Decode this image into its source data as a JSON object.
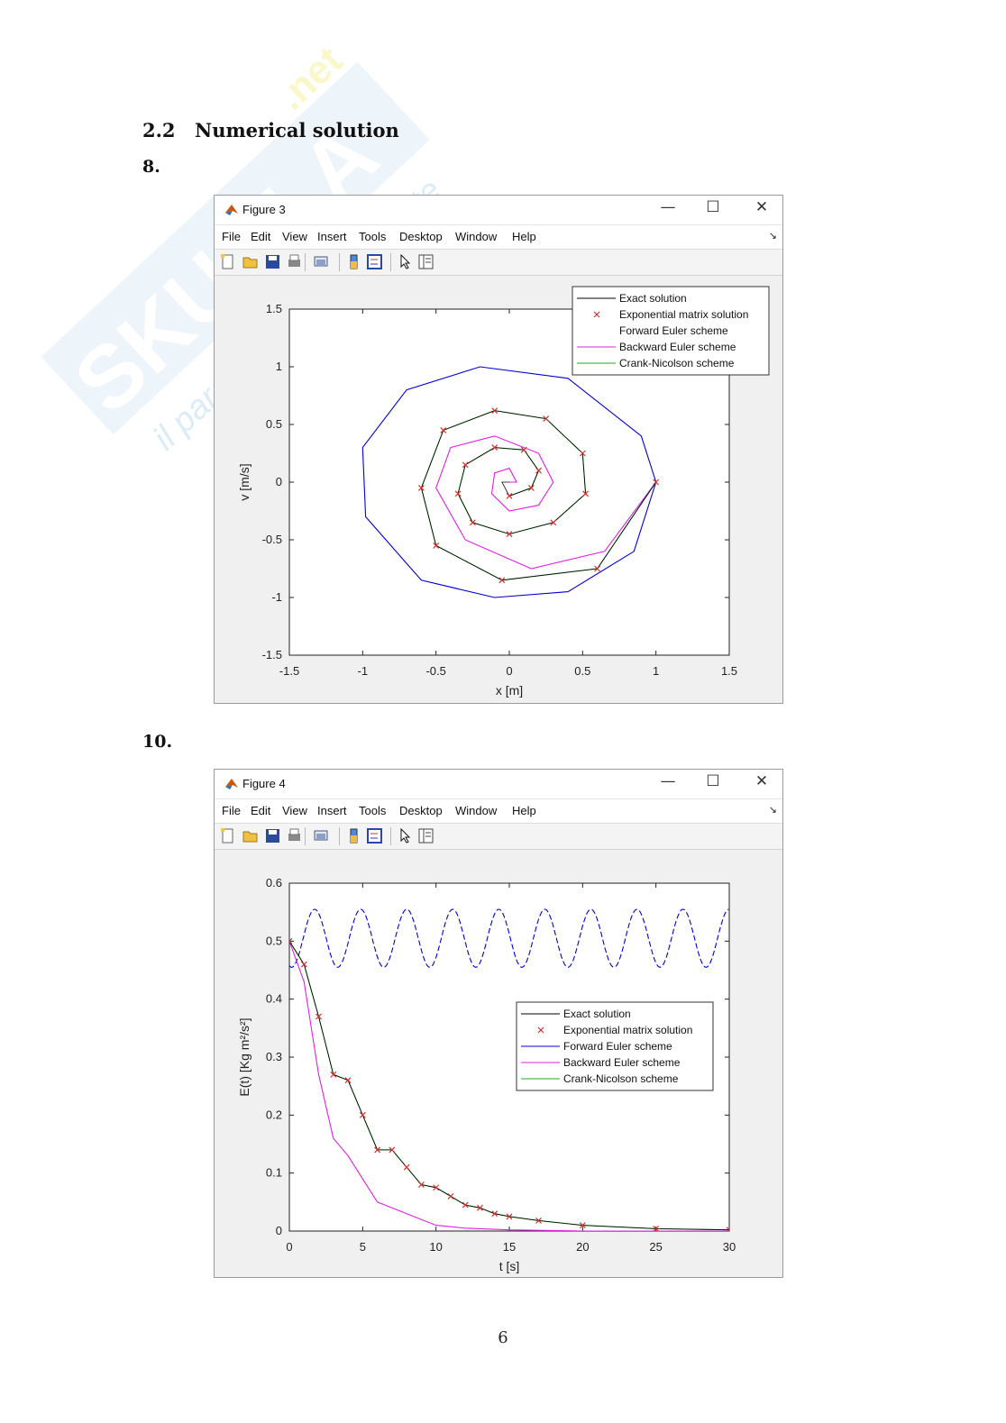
{
  "section": {
    "number": "2.2",
    "title": "Numerical solution"
  },
  "questions": {
    "q1": "8.",
    "q2": "10."
  },
  "page_number": "6",
  "watermark": {
    "brand": "Skuola.net",
    "tagline": "il paradiso dello studente"
  },
  "windows": [
    {
      "title": "Figure 3",
      "controls": {
        "minimize": "—",
        "maximize": "☐",
        "close": "✕"
      },
      "menu": [
        "File",
        "Edit",
        "View",
        "Insert",
        "Tools",
        "Desktop",
        "Window",
        "Help"
      ]
    },
    {
      "title": "Figure 4",
      "controls": {
        "minimize": "—",
        "maximize": "☐",
        "close": "✕"
      },
      "menu": [
        "File",
        "Edit",
        "View",
        "Insert",
        "Tools",
        "Desktop",
        "Window",
        "Help"
      ]
    }
  ],
  "toolbar_icons": [
    "new-file-icon",
    "open-folder-icon",
    "save-icon",
    "print-icon",
    "link-plot-icon",
    "colorbar-icon",
    "legend-icon",
    "pointer-icon",
    "property-inspector-icon"
  ],
  "colors": {
    "exact": "#000000",
    "exponential": "#d32f2f",
    "forward": "#0000cc",
    "backward": "#dd22dd",
    "crank": "#22aa22"
  },
  "chart_data": [
    {
      "type": "line",
      "xlabel": "x [m]",
      "ylabel": "v [m/s]",
      "xlim": [
        -1.5,
        1.5
      ],
      "ylim": [
        -1.5,
        1.5
      ],
      "xticks": [
        "-1.5",
        "-1",
        "-0.5",
        "0",
        "0.5",
        "1",
        "1.5"
      ],
      "yticks": [
        "-1.5",
        "-1",
        "-0.5",
        "0",
        "0.5",
        "1",
        "1.5"
      ],
      "legend_position": "top-right",
      "legend": [
        "Exact solution",
        "Exponential matrix solution",
        "Forward Euler scheme",
        "Backward Euler scheme",
        "Crank-Nicolson scheme"
      ],
      "series": [
        {
          "name": "Exact solution",
          "style": "line",
          "x": [
            1.0,
            0.6,
            -0.05,
            -0.5,
            -0.6,
            -0.45,
            -0.1,
            0.25,
            0.5,
            0.52,
            0.3,
            0.0,
            -0.25,
            -0.35,
            -0.3,
            -0.1,
            0.1,
            0.2,
            0.15,
            0.0,
            -0.05,
            0.0
          ],
          "y": [
            0.0,
            -0.75,
            -0.85,
            -0.55,
            -0.05,
            0.45,
            0.62,
            0.55,
            0.25,
            -0.1,
            -0.35,
            -0.45,
            -0.35,
            -0.1,
            0.15,
            0.3,
            0.28,
            0.1,
            -0.05,
            -0.12,
            0.0,
            0.0
          ]
        },
        {
          "name": "Exponential matrix solution",
          "style": "markers",
          "x": [
            1.0,
            0.6,
            -0.05,
            -0.5,
            -0.6,
            -0.45,
            -0.1,
            0.25,
            0.5,
            0.52,
            0.3,
            0.0,
            -0.25,
            -0.35,
            -0.3,
            -0.1,
            0.1,
            0.2,
            0.15,
            0.0
          ],
          "y": [
            0.0,
            -0.75,
            -0.85,
            -0.55,
            -0.05,
            0.45,
            0.62,
            0.55,
            0.25,
            -0.1,
            -0.35,
            -0.45,
            -0.35,
            -0.1,
            0.15,
            0.3,
            0.28,
            0.1,
            -0.05,
            -0.12
          ]
        },
        {
          "name": "Forward Euler scheme",
          "style": "line",
          "x": [
            1.0,
            0.85,
            0.4,
            -0.1,
            -0.6,
            -0.98,
            -1.0,
            -0.7,
            -0.2,
            0.4,
            0.9,
            1.0
          ],
          "y": [
            0.0,
            -0.6,
            -0.95,
            -1.0,
            -0.85,
            -0.3,
            0.3,
            0.8,
            1.0,
            0.9,
            0.4,
            0.0
          ]
        },
        {
          "name": "Backward Euler scheme",
          "style": "line",
          "x": [
            1.0,
            0.65,
            0.15,
            -0.3,
            -0.5,
            -0.4,
            -0.1,
            0.2,
            0.3,
            0.2,
            0.0,
            -0.12,
            -0.1,
            0.0,
            0.05,
            0.0
          ],
          "y": [
            0.0,
            -0.6,
            -0.75,
            -0.5,
            -0.05,
            0.3,
            0.4,
            0.25,
            0.0,
            -0.2,
            -0.25,
            -0.1,
            0.08,
            0.12,
            0.0,
            0.0
          ]
        },
        {
          "name": "Crank-Nicolson scheme",
          "style": "line",
          "x": [
            1.0,
            0.6,
            -0.05,
            -0.5,
            -0.6,
            -0.45,
            -0.1,
            0.25,
            0.5,
            0.52,
            0.3,
            0.0,
            -0.25,
            -0.35,
            -0.3,
            -0.1,
            0.1,
            0.2,
            0.15,
            0.0
          ],
          "y": [
            0.0,
            -0.75,
            -0.85,
            -0.55,
            -0.05,
            0.45,
            0.62,
            0.55,
            0.25,
            -0.1,
            -0.35,
            -0.45,
            -0.35,
            -0.1,
            0.15,
            0.3,
            0.28,
            0.1,
            -0.05,
            -0.12
          ]
        }
      ]
    },
    {
      "type": "line",
      "xlabel": "t [s]",
      "ylabel": "E(t) [Kg m²/s²]",
      "xlim": [
        0,
        30
      ],
      "ylim": [
        0,
        0.6
      ],
      "xticks": [
        "0",
        "5",
        "10",
        "15",
        "20",
        "25",
        "30"
      ],
      "yticks": [
        "0",
        "0.1",
        "0.2",
        "0.3",
        "0.4",
        "0.5",
        "0.6"
      ],
      "legend_position": "center-right",
      "legend": [
        "Exact solution",
        "Exponential matrix solution",
        "Forward Euler scheme",
        "Backward Euler scheme",
        "Crank-Nicolson scheme"
      ],
      "series": [
        {
          "name": "Exact solution",
          "style": "line",
          "x": [
            0,
            1,
            2,
            3,
            4,
            5,
            6,
            7,
            8,
            9,
            10,
            11,
            12,
            13,
            14,
            15,
            17,
            20,
            25,
            30
          ],
          "y": [
            0.5,
            0.46,
            0.37,
            0.27,
            0.26,
            0.2,
            0.14,
            0.14,
            0.11,
            0.08,
            0.075,
            0.06,
            0.045,
            0.04,
            0.03,
            0.025,
            0.018,
            0.01,
            0.004,
            0.002
          ]
        },
        {
          "name": "Exponential matrix solution",
          "style": "markers",
          "x": [
            0,
            1,
            2,
            3,
            4,
            5,
            6,
            7,
            8,
            9,
            10,
            11,
            12,
            13,
            14,
            15,
            17,
            20,
            25,
            30
          ],
          "y": [
            0.5,
            0.46,
            0.37,
            0.27,
            0.26,
            0.2,
            0.14,
            0.14,
            0.11,
            0.08,
            0.075,
            0.06,
            0.045,
            0.04,
            0.03,
            0.025,
            0.018,
            0.01,
            0.004,
            0.002
          ]
        },
        {
          "name": "Forward Euler scheme",
          "style": "sine",
          "mean": 0.505,
          "amplitude": 0.05,
          "period": 3.14,
          "x_range": [
            0,
            30
          ]
        },
        {
          "name": "Backward Euler scheme",
          "style": "line",
          "x": [
            0,
            1,
            2,
            3,
            4,
            5,
            6,
            7,
            8,
            10,
            12,
            15,
            20,
            30
          ],
          "y": [
            0.5,
            0.43,
            0.27,
            0.16,
            0.13,
            0.09,
            0.05,
            0.04,
            0.03,
            0.01,
            0.005,
            0.002,
            0.0,
            0.0
          ]
        },
        {
          "name": "Crank-Nicolson scheme",
          "style": "line",
          "x": [
            0,
            1,
            2,
            3,
            4,
            5,
            6,
            7,
            8,
            9,
            10,
            11,
            12,
            13,
            14,
            15,
            17,
            20,
            25,
            30
          ],
          "y": [
            0.5,
            0.46,
            0.37,
            0.27,
            0.26,
            0.2,
            0.14,
            0.14,
            0.11,
            0.08,
            0.075,
            0.06,
            0.045,
            0.04,
            0.03,
            0.025,
            0.018,
            0.01,
            0.004,
            0.002
          ]
        }
      ]
    }
  ]
}
